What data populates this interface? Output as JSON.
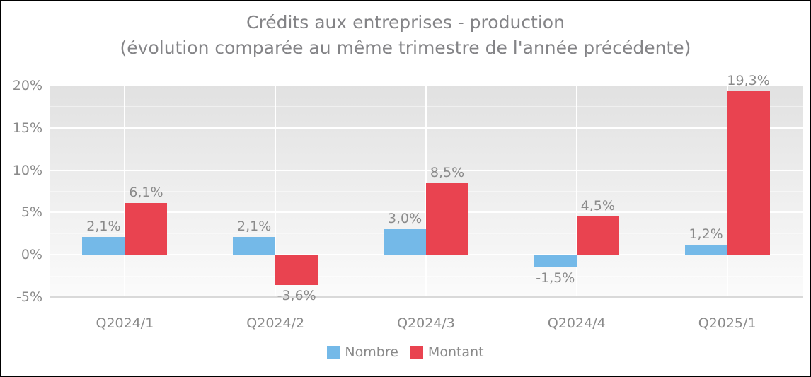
{
  "frame": {
    "background": "#ffffff",
    "border_color": "#000000"
  },
  "title": {
    "line1": "Crédits aux entreprises - production",
    "line2": "(évolution comparée au même trimestre de l'année précédente)",
    "color": "#848487"
  },
  "chart_data": {
    "type": "bar",
    "categories": [
      "Q2024/1",
      "Q2024/2",
      "Q2024/3",
      "Q2024/4",
      "Q2025/1"
    ],
    "series": [
      {
        "name": "Nombre",
        "color": "#74B9E8",
        "values": [
          2.1,
          2.1,
          3.0,
          -1.5,
          1.2
        ],
        "labels": [
          "2,1%",
          "2,1%",
          "3,0%",
          "-1,5%",
          "1,2%"
        ]
      },
      {
        "name": "Montant",
        "color": "#E94350",
        "values": [
          6.1,
          -3.6,
          8.5,
          4.5,
          19.3
        ],
        "labels": [
          "6,1%",
          "-3,6%",
          "8,5%",
          "4,5%",
          "19,3%"
        ]
      }
    ],
    "ylim": [
      -5,
      20
    ],
    "ytick_step": 5,
    "yticks": [
      {
        "value": 20,
        "label": "20%"
      },
      {
        "value": 15,
        "label": "15%"
      },
      {
        "value": 10,
        "label": "10%"
      },
      {
        "value": 5,
        "label": "5%"
      },
      {
        "value": 0,
        "label": "0%"
      },
      {
        "value": -5,
        "label": "-5%"
      }
    ],
    "grid": "horizontal major + minor, vertical at category centers",
    "legend_position": "bottom-center",
    "plot_bg_top": "#E1E1E1",
    "plot_bg_bottom": "#FBFBFB",
    "gridline_color": "#FFFFFF",
    "axis_line_color": "#D9D9D9",
    "label_color": "#8A8A8A"
  }
}
